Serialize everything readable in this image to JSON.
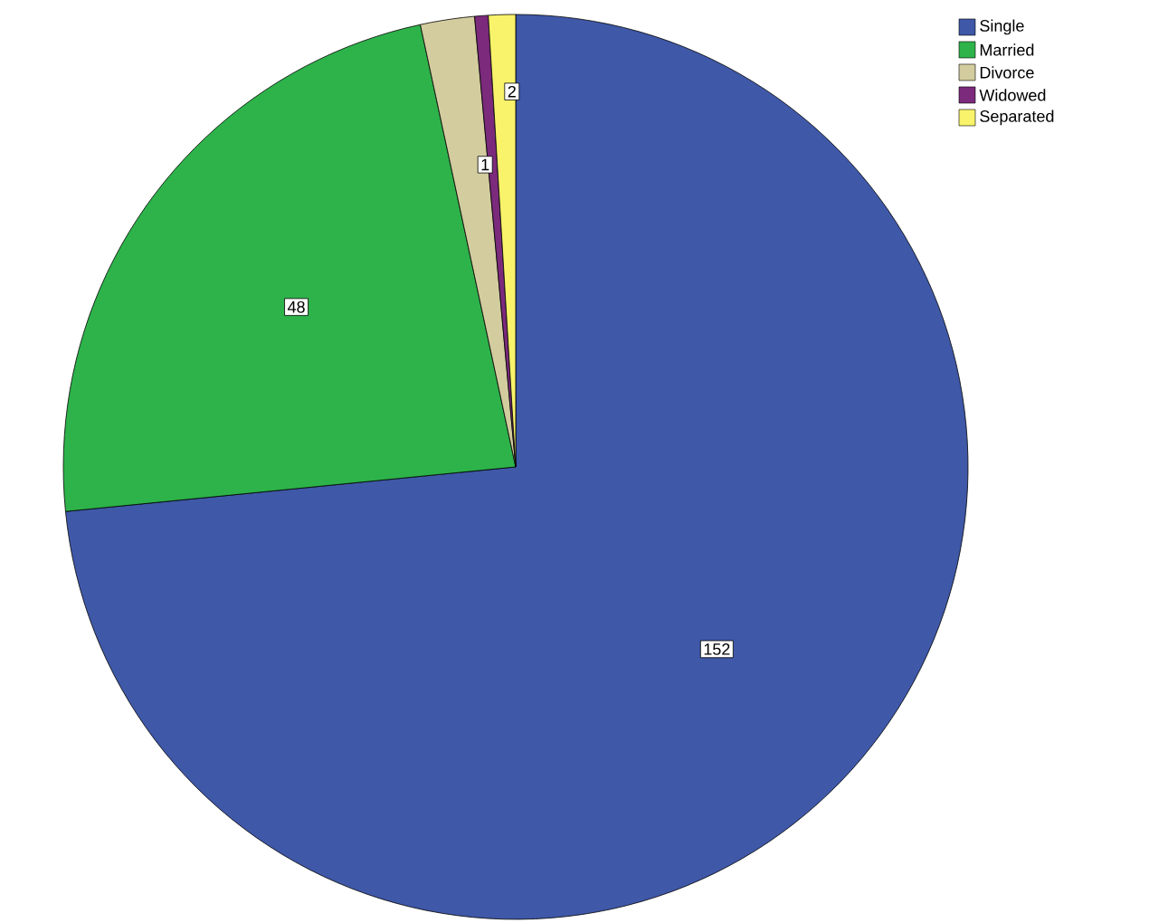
{
  "chart_data": {
    "type": "pie",
    "categories": [
      "Single",
      "Married",
      "Divorce",
      "Widowed",
      "Separated"
    ],
    "values": [
      152,
      48,
      4,
      1,
      2
    ],
    "colors": [
      "#3f58a8",
      "#2db34a",
      "#d3cc9e",
      "#7b2a7c",
      "#f8f36a"
    ],
    "value_labels": [
      "152",
      "48",
      null,
      "1",
      "2"
    ],
    "legend": "top right"
  }
}
